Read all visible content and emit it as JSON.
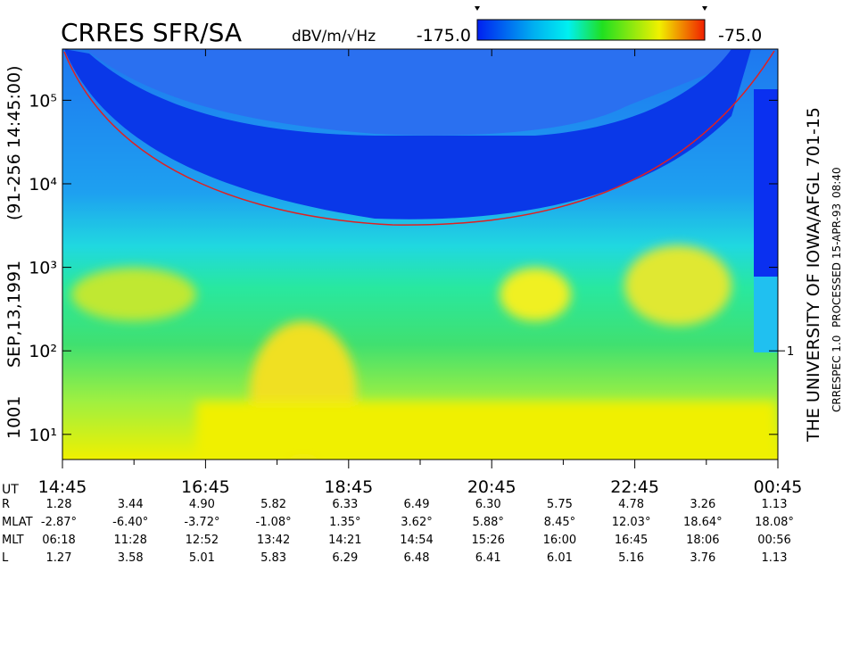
{
  "chart_data": {
    "type": "spectrogram",
    "title": "CRRES SFR/SA",
    "colorbar": {
      "label": "dBV/m/√Hz",
      "range": [
        {
          "value": -175,
          "label": "-175.0"
        },
        {
          "value": -75,
          "label": "-75.0"
        }
      ]
    },
    "y_scale": "log",
    "ylim": [
      5,
      410000
    ],
    "yticks": [
      {
        "value": 10,
        "label": "10¹"
      },
      {
        "value": 100,
        "label": "10²"
      },
      {
        "value": 1000,
        "label": "10³"
      },
      {
        "value": 10000,
        "label": "10⁴"
      },
      {
        "value": 100000,
        "label": "10⁵"
      }
    ],
    "y2ticks": [
      {
        "value": 100,
        "label": "1"
      }
    ],
    "x_label": "UT",
    "xlim": [
      0,
      10
    ],
    "xticks": [
      {
        "value": 0,
        "label": "14:45"
      },
      {
        "value": 2,
        "label": "16:45"
      },
      {
        "value": 4,
        "label": "18:45"
      },
      {
        "value": 6,
        "label": "20:45"
      },
      {
        "value": 8,
        "label": "22:45"
      },
      {
        "value": 10,
        "label": "00:45"
      }
    ],
    "left_texts": [
      "1001",
      "SEP,13,1991",
      "(91-256 14:45:00)"
    ],
    "right_texts": [
      "THE UNIVERSITY OF IOWA/AFGL 701-15",
      "CRRESPEC 1.0",
      "PROCESSED 15-APR-93",
      "08:40"
    ],
    "ephemeris": [
      {
        "label": "R",
        "values": [
          "1.28",
          "3.44",
          "4.90",
          "5.82",
          "6.33",
          "6.49",
          "6.30",
          "5.75",
          "4.78",
          "3.26",
          "1.13"
        ]
      },
      {
        "label": "MLAT",
        "values": [
          "-2.87°",
          "-6.40°",
          "-3.72°",
          "-1.08°",
          "1.35°",
          "3.62°",
          "5.88°",
          "8.45°",
          "12.03°",
          "18.64°",
          "18.08°"
        ]
      },
      {
        "label": "MLT",
        "values": [
          "06:18",
          "11:28",
          "12:52",
          "13:42",
          "14:21",
          "14:54",
          "15:26",
          "16:00",
          "16:45",
          "18:06",
          "00:56"
        ]
      },
      {
        "label": "L",
        "values": [
          "1.27",
          "3.58",
          "5.01",
          "5.83",
          "6.29",
          "6.48",
          "6.41",
          "6.01",
          "5.16",
          "3.76",
          "1.13"
        ]
      }
    ]
  }
}
